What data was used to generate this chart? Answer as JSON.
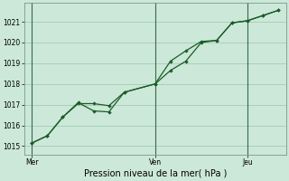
{
  "background_color": "#cce8d8",
  "grid_color": "#aacfba",
  "line_color": "#1a5c28",
  "xlabel": "Pression niveau de la mer( hPa )",
  "ylim": [
    1014.6,
    1021.9
  ],
  "yticks": [
    1015,
    1016,
    1017,
    1018,
    1019,
    1020,
    1021
  ],
  "xtick_labels": [
    "Mer",
    "Ven",
    "Jeu"
  ],
  "xtick_positions": [
    0,
    8,
    14
  ],
  "vlines": [
    0,
    8,
    14
  ],
  "line1_x": [
    0,
    1,
    2,
    3,
    4,
    5,
    6,
    8,
    9,
    10,
    11,
    12,
    13,
    14,
    15,
    16
  ],
  "line1_y": [
    1015.15,
    1015.5,
    1016.4,
    1017.05,
    1017.05,
    1016.95,
    1017.6,
    1018.0,
    1019.1,
    1019.6,
    1020.05,
    1020.1,
    1020.95,
    1021.05,
    1021.3,
    1021.55
  ],
  "line2_x": [
    0,
    1,
    2,
    3,
    4,
    5,
    6,
    8,
    9,
    10,
    11,
    12,
    13,
    14,
    15,
    16
  ],
  "line2_y": [
    1015.15,
    1015.5,
    1016.4,
    1017.1,
    1016.7,
    1016.65,
    1017.6,
    1018.0,
    1018.65,
    1019.1,
    1020.0,
    1020.1,
    1020.95,
    1021.05,
    1021.3,
    1021.55
  ],
  "xlim": [
    -0.5,
    16.5
  ],
  "figsize": [
    3.2,
    2.0
  ],
  "dpi": 100,
  "ylabel_fontsize": 5.5,
  "xlabel_fontsize": 7,
  "tick_labelsize": 5.5,
  "linewidth": 0.9,
  "markersize": 2.2,
  "spine_color": "#7a9a88",
  "vline_color": "#3a6a4a"
}
